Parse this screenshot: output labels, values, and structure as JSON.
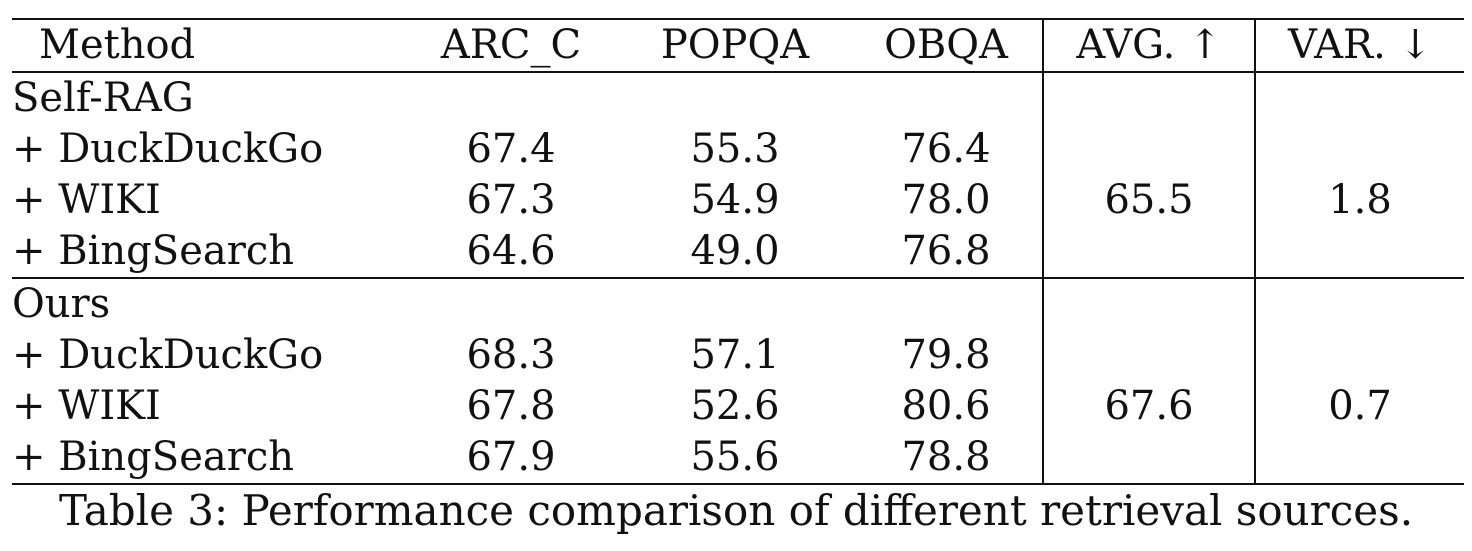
{
  "table": {
    "headers": [
      "Method",
      "ARC_C",
      "POPQA",
      "OBQA",
      "AVG. ↑",
      "VAR. ↓"
    ],
    "groups": [
      {
        "name": "Self-RAG",
        "rows": [
          {
            "label": "+ DuckDuckGo",
            "values": [
              "67.4",
              "55.3",
              "76.4"
            ]
          },
          {
            "label": "+ WIKI",
            "values": [
              "67.3",
              "54.9",
              "78.0"
            ]
          },
          {
            "label": "+ BingSearch",
            "values": [
              "64.6",
              "49.0",
              "76.8"
            ]
          }
        ],
        "avg": "65.5",
        "var": "1.8"
      },
      {
        "name": "Ours",
        "rows": [
          {
            "label": "+ DuckDuckGo",
            "values": [
              "68.3",
              "57.1",
              "79.8"
            ]
          },
          {
            "label": "+ WIKI",
            "values": [
              "67.8",
              "52.6",
              "80.6"
            ]
          },
          {
            "label": "+ BingSearch",
            "values": [
              "67.9",
              "55.6",
              "78.8"
            ]
          }
        ],
        "avg": "67.6",
        "var": "0.7"
      }
    ]
  },
  "caption": "Table 3: Performance comparison of different retrieval sources."
}
